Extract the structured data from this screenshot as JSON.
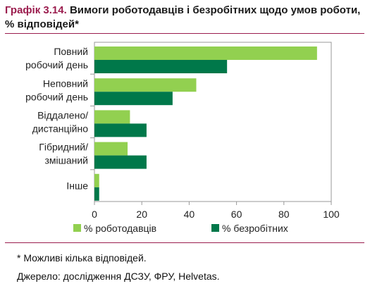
{
  "title": {
    "label": "Графік 3.14.",
    "text": " Вимоги роботодавців і безробітних щодо умов роботи, % відповідей*"
  },
  "chart_data": {
    "type": "bar",
    "orientation": "horizontal",
    "categories": [
      [
        "Повний",
        "робочий день"
      ],
      [
        "Неповний",
        "робочий день"
      ],
      [
        "Віддалено/",
        "дистанційно"
      ],
      [
        "Гібридний/",
        "змішаний"
      ],
      [
        "Інше"
      ]
    ],
    "series": [
      {
        "name": "% роботодавців",
        "color": "#92d050",
        "values": [
          94,
          43,
          15,
          14,
          2
        ]
      },
      {
        "name": "% безробітних",
        "color": "#00784a",
        "values": [
          56,
          33,
          22,
          22,
          2
        ]
      }
    ],
    "xlim": [
      0,
      100
    ],
    "xticks": [
      0,
      20,
      40,
      60,
      80,
      100
    ],
    "grid": false,
    "legend_position": "bottom"
  },
  "footnote": "* Можливі кілька відповідей.",
  "source": "Джерело: дослідження ДСЗУ, ФРУ, Helvetas."
}
